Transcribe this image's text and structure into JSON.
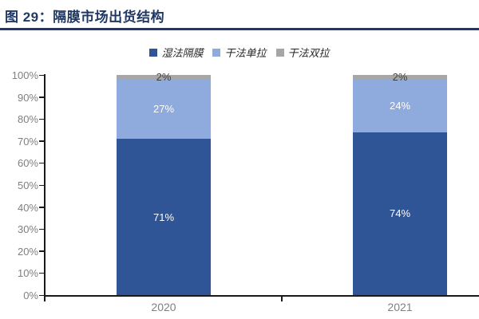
{
  "header": {
    "title": "图 29：隔膜市场出货结构"
  },
  "chart_data": {
    "type": "bar",
    "stacked": true,
    "title": "图 29：隔膜市场出货结构",
    "categories": [
      "2020",
      "2021"
    ],
    "series": [
      {
        "name": "湿法隔膜",
        "color": "#2F5597",
        "label_color": "#FFFFFF",
        "values": [
          71,
          74
        ]
      },
      {
        "name": "干法单拉",
        "color": "#8FAADC",
        "label_color": "#FFFFFF",
        "values": [
          27,
          24
        ]
      },
      {
        "name": "干法双拉",
        "color": "#A6A6A6",
        "label_color": "#404040",
        "values": [
          2,
          2
        ]
      }
    ],
    "value_suffix": "%",
    "ylim": [
      0,
      100
    ],
    "yticks": [
      "0%",
      "10%",
      "20%",
      "30%",
      "40%",
      "50%",
      "60%",
      "70%",
      "80%",
      "90%",
      "100%"
    ],
    "legend_position": "top-center",
    "grid": false
  },
  "colors": {
    "title": "#1F3864",
    "title_rule": "#1F3864",
    "axis_line": "#1A1A1A",
    "tick_label": "#808080"
  }
}
